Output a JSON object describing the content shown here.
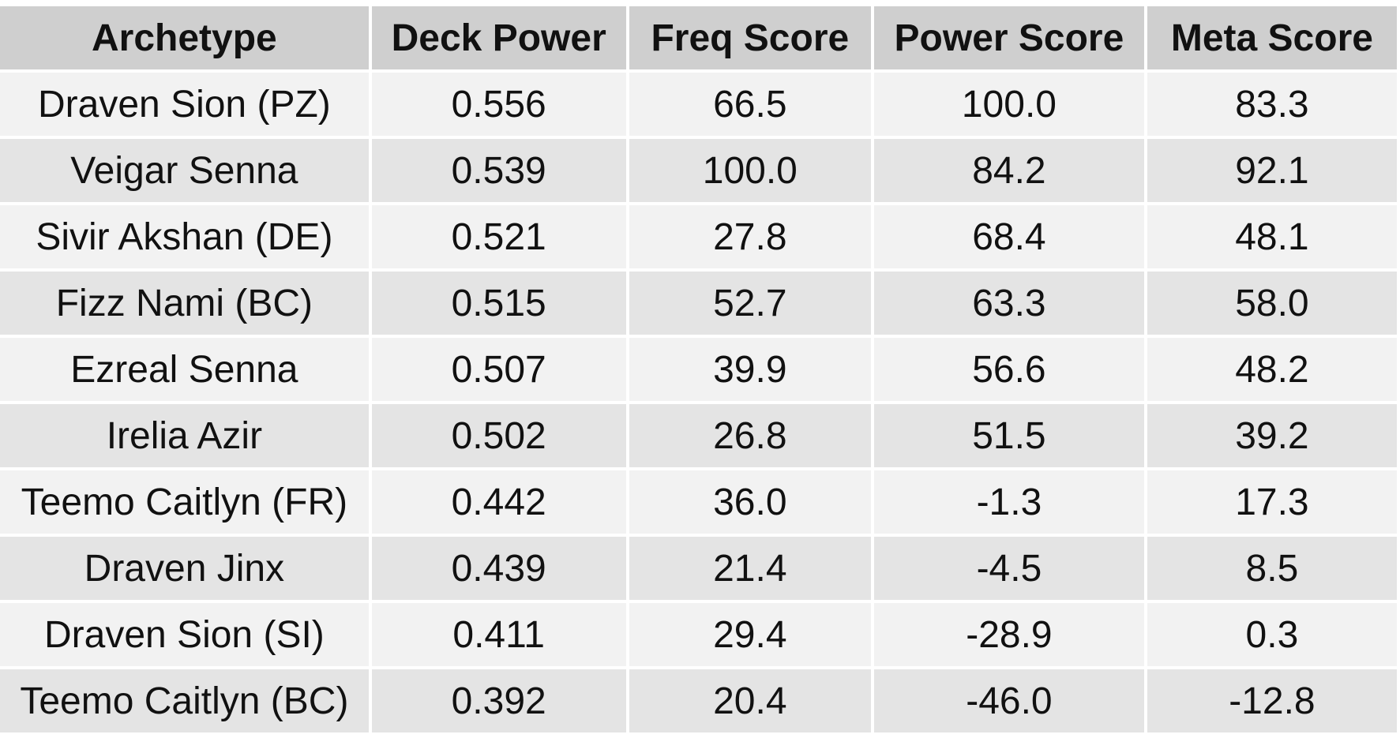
{
  "chart_data": {
    "type": "table",
    "columns": [
      "Archetype",
      "Deck Power",
      "Freq Score",
      "Power Score",
      "Meta Score"
    ],
    "rows": [
      [
        "Draven Sion (PZ)",
        "0.556",
        "66.5",
        "100.0",
        "83.3"
      ],
      [
        "Veigar Senna",
        "0.539",
        "100.0",
        "84.2",
        "92.1"
      ],
      [
        "Sivir Akshan (DE)",
        "0.521",
        "27.8",
        "68.4",
        "48.1"
      ],
      [
        "Fizz Nami (BC)",
        "0.515",
        "52.7",
        "63.3",
        "58.0"
      ],
      [
        "Ezreal Senna",
        "0.507",
        "39.9",
        "56.6",
        "48.2"
      ],
      [
        "Irelia Azir",
        "0.502",
        "26.8",
        "51.5",
        "39.2"
      ],
      [
        "Teemo Caitlyn (FR)",
        "0.442",
        "36.0",
        "-1.3",
        "17.3"
      ],
      [
        "Draven Jinx",
        "0.439",
        "21.4",
        "-4.5",
        "8.5"
      ],
      [
        "Draven Sion (SI)",
        "0.411",
        "29.4",
        "-28.9",
        "0.3"
      ],
      [
        "Teemo Caitlyn (BC)",
        "0.392",
        "20.4",
        "-46.0",
        "-12.8"
      ]
    ],
    "colors": {
      "header_bg": "#cfcfcf",
      "row_odd_bg": "#f2f2f2",
      "row_even_bg": "#e4e4e4",
      "text": "#111111"
    }
  }
}
